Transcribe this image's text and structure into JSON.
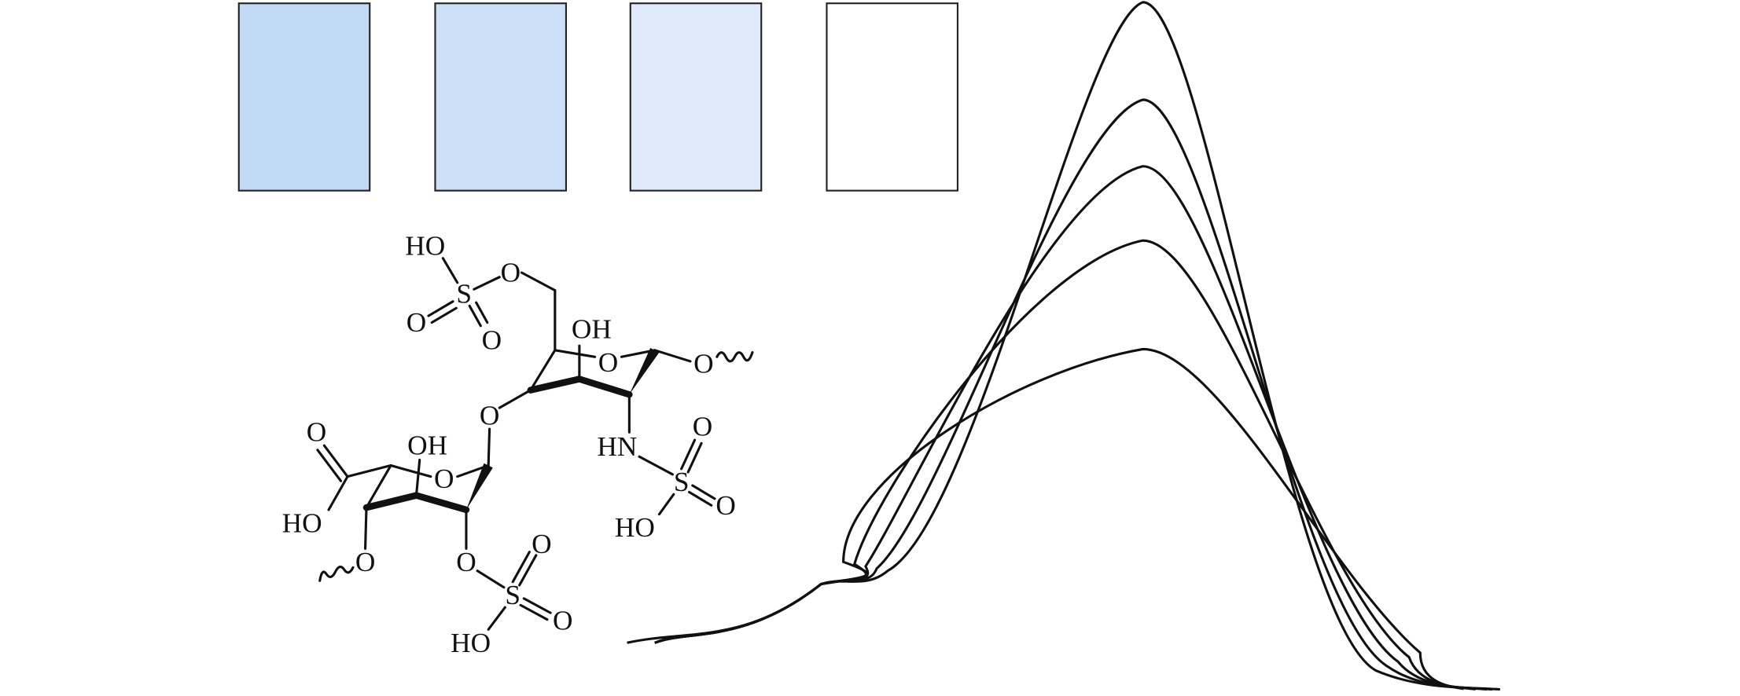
{
  "structure": {
    "labels": [
      "HO",
      "O",
      "S",
      "O",
      "O",
      "OH",
      "O",
      "O",
      "O",
      "HN",
      "O",
      "S",
      "O",
      "HO",
      "O",
      "OH",
      "O",
      "HO",
      "O",
      "O",
      "S",
      "O",
      "O",
      "HO"
    ]
  }
}
